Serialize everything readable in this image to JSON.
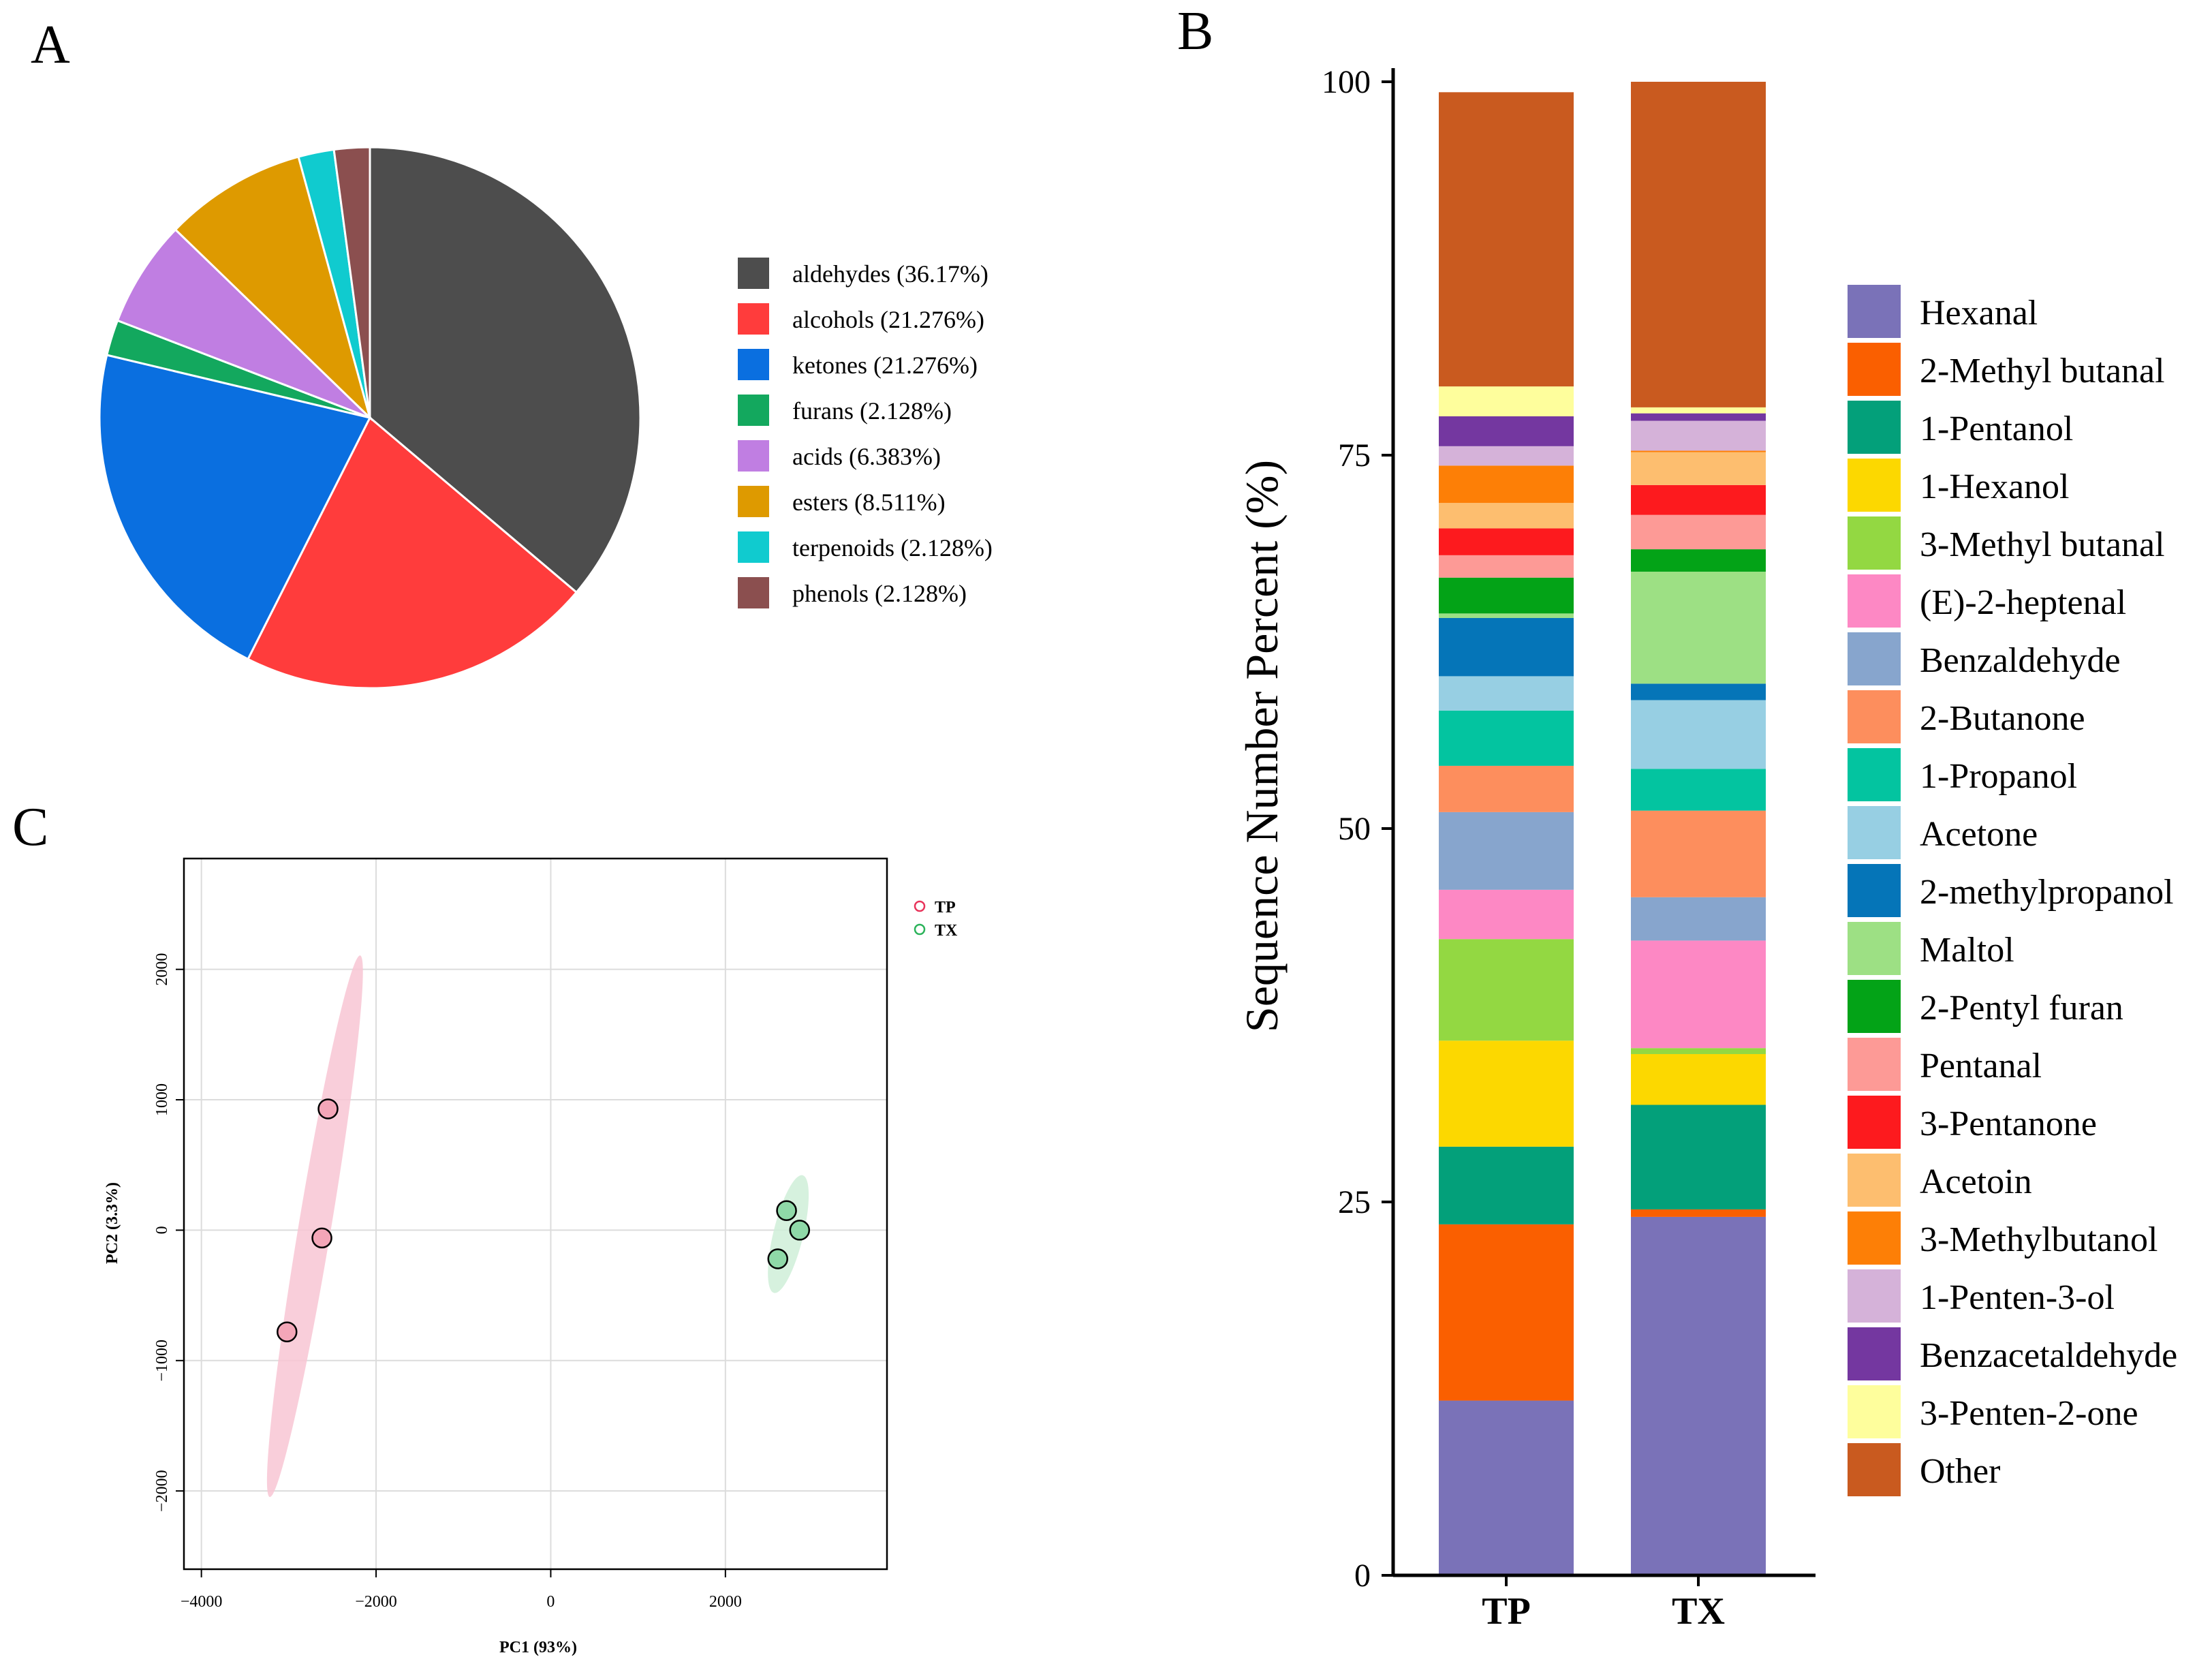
{
  "panels": {
    "a": "A",
    "b": "B",
    "c": "C"
  },
  "chart_data": [
    {
      "type": "pie",
      "panel": "A",
      "legend_position": "right",
      "slices": [
        {
          "label": "aldehydes (36.17%)",
          "name": "aldehydes",
          "value": 36.17,
          "color": "#4d4d4d"
        },
        {
          "label": "alcohols (21.276%)",
          "name": "alcohols",
          "value": 21.276,
          "color": "#ff3c3c"
        },
        {
          "label": "ketones (21.276%)",
          "name": "ketones",
          "value": 21.276,
          "color": "#0a6fe0"
        },
        {
          "label": "furans (2.128%)",
          "name": "furans",
          "value": 2.128,
          "color": "#13a85e"
        },
        {
          "label": "acids (6.383%)",
          "name": "acids",
          "value": 6.383,
          "color": "#c07ee2"
        },
        {
          "label": "esters (8.511%)",
          "name": "esters",
          "value": 8.511,
          "color": "#de9a00"
        },
        {
          "label": "terpenoids (2.128%)",
          "name": "terpenoids",
          "value": 2.128,
          "color": "#10cbcf"
        },
        {
          "label": "phenols (2.128%)",
          "name": "phenols",
          "value": 2.128,
          "color": "#8b4f4f"
        }
      ]
    },
    {
      "type": "bar",
      "stacked": true,
      "panel": "B",
      "ylabel": "Sequence Number Percent (%)",
      "ylim": [
        0,
        100
      ],
      "yticks": [
        "0",
        "25",
        "50",
        "75",
        "100"
      ],
      "categories": [
        "TP",
        "TX"
      ],
      "legend_position": "right",
      "series": [
        {
          "name": "Hexanal",
          "color": "#7a72b8",
          "values": [
            11.7,
            24.0
          ]
        },
        {
          "name": "2-Methyl butanal",
          "color": "#fa5f00",
          "values": [
            11.8,
            0.5
          ]
        },
        {
          "name": "1-Pentanol",
          "color": "#03a07a",
          "values": [
            5.2,
            7.0
          ]
        },
        {
          "name": "1-Hexanol",
          "color": "#fcd800",
          "values": [
            7.1,
            3.4
          ]
        },
        {
          "name": "3-Methyl butanal",
          "color": "#93d842",
          "values": [
            6.8,
            0.4
          ]
        },
        {
          "name": "(E)-2-heptenal",
          "color": "#fd88c4",
          "values": [
            3.3,
            7.2
          ]
        },
        {
          "name": "Benzaldehyde",
          "color": "#87a5cd",
          "values": [
            5.2,
            2.9
          ]
        },
        {
          "name": "2-Butanone",
          "color": "#fd8e5d",
          "values": [
            3.1,
            5.8
          ]
        },
        {
          "name": "1-Propanol",
          "color": "#03c4a0",
          "values": [
            3.7,
            2.8
          ]
        },
        {
          "name": "Acetone",
          "color": "#97cfe3",
          "values": [
            2.3,
            4.6
          ]
        },
        {
          "name": "2-methylpropanol",
          "color": "#0575b8",
          "values": [
            3.9,
            1.1
          ]
        },
        {
          "name": "Maltol",
          "color": "#9de084",
          "values": [
            0.3,
            7.5
          ]
        },
        {
          "name": "2-Pentyl furan",
          "color": "#03a317",
          "values": [
            2.4,
            1.5
          ]
        },
        {
          "name": "Pentanal",
          "color": "#fd9a96",
          "values": [
            1.5,
            2.3
          ]
        },
        {
          "name": "3-Pentanone",
          "color": "#fd1a1e",
          "values": [
            1.8,
            2.0
          ]
        },
        {
          "name": "Acetoin",
          "color": "#fdbe6f",
          "values": [
            1.7,
            2.2
          ]
        },
        {
          "name": "3-Methylbutanol",
          "color": "#fd7f06",
          "values": [
            2.5,
            0.1
          ]
        },
        {
          "name": "1-Penten-3-ol",
          "color": "#d5b2d9",
          "values": [
            1.3,
            2.0
          ]
        },
        {
          "name": "Benzacetaldehyde",
          "color": "#7437a0",
          "values": [
            2.0,
            0.5
          ]
        },
        {
          "name": "3-Penten-2-one",
          "color": "#fefe9c",
          "values": [
            2.0,
            0.4
          ]
        },
        {
          "name": "Other",
          "color": "#c95a1f",
          "values": [
            19.7,
            21.8
          ]
        }
      ]
    },
    {
      "type": "scatter",
      "panel": "C",
      "xlabel": "PC1 (93%)",
      "ylabel": "PC2 (3.3%)",
      "xlim": [
        -4200,
        3850
      ],
      "ylim": [
        -2600,
        2850
      ],
      "xticks": [
        -4000,
        -2000,
        0,
        2000
      ],
      "yticks": [
        -2000,
        -1000,
        0,
        1000,
        2000
      ],
      "xtick_labels": [
        "−4000",
        "−2000",
        "0",
        "2000"
      ],
      "ytick_labels": [
        "−2000",
        "−1000",
        "0",
        "1000",
        "2000"
      ],
      "grid": true,
      "legend_position": "top-right",
      "series": [
        {
          "name": "TP",
          "point_color": "#f4a6b8",
          "legend_color": "#e8335a",
          "ellipse_color": "#f8c6d3",
          "ellipse": {
            "cx": -2700,
            "cy": 30,
            "a": 2140,
            "b": 180,
            "angle_deg": 76
          },
          "points": [
            {
              "x": -2550,
              "y": 930
            },
            {
              "x": -2620,
              "y": -60
            },
            {
              "x": -3020,
              "y": -780
            }
          ]
        },
        {
          "name": "TX",
          "point_color": "#8fd9a8",
          "legend_color": "#2bb35a",
          "ellipse_color": "#cfeed8",
          "ellipse": {
            "cx": 2720,
            "cy": -30,
            "a": 480,
            "b": 160,
            "angle_deg": 70
          },
          "points": [
            {
              "x": 2700,
              "y": 150
            },
            {
              "x": 2850,
              "y": 0
            },
            {
              "x": 2600,
              "y": -220
            }
          ]
        }
      ]
    }
  ]
}
